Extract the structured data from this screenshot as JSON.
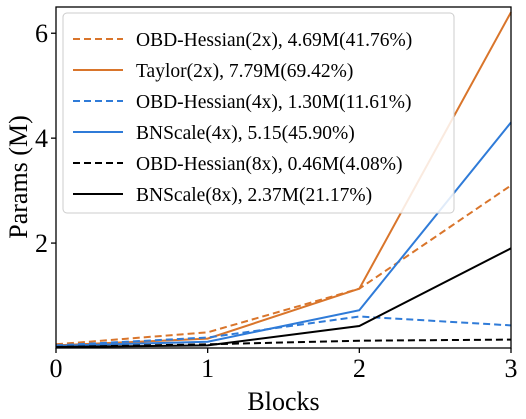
{
  "chart_data": {
    "type": "line",
    "xlabel": "Blocks",
    "ylabel": "Params (M)",
    "x": [
      0,
      1,
      2,
      3
    ],
    "x_ticks": [
      "0",
      "1",
      "2",
      "3"
    ],
    "y_ticks": [
      "2",
      "4",
      "6"
    ],
    "xlim": [
      0,
      3
    ],
    "ylim": [
      0,
      6.5
    ],
    "grid": false,
    "legend_position": "top-left",
    "series": [
      {
        "name": "OBD-Hessian(2x), 4.69M(41.76%)",
        "values": [
          0.07,
          0.3,
          1.13,
          3.1
        ],
        "color": "#d9752b",
        "dash": "dashed"
      },
      {
        "name": "Taylor(2x), 7.79M(69.42%)",
        "values": [
          0.05,
          0.18,
          1.13,
          6.4
        ],
        "color": "#d9752b",
        "dash": "solid"
      },
      {
        "name": "OBD-Hessian(4x), 1.30M(11.61%)",
        "values": [
          0.05,
          0.2,
          0.6,
          0.43
        ],
        "color": "#2f7bd8",
        "dash": "dashed"
      },
      {
        "name": "BNScale(4x), 5.15(45.90%)",
        "values": [
          0.04,
          0.12,
          0.72,
          4.3
        ],
        "color": "#2f7bd8",
        "dash": "solid"
      },
      {
        "name": "OBD-Hessian(8x), 0.46M(4.08%)",
        "values": [
          0.02,
          0.07,
          0.14,
          0.16
        ],
        "color": "#000000",
        "dash": "dashed"
      },
      {
        "name": "BNScale(8x), 2.37M(21.17%)",
        "values": [
          0.02,
          0.05,
          0.42,
          1.9
        ],
        "color": "#000000",
        "dash": "solid"
      }
    ]
  }
}
